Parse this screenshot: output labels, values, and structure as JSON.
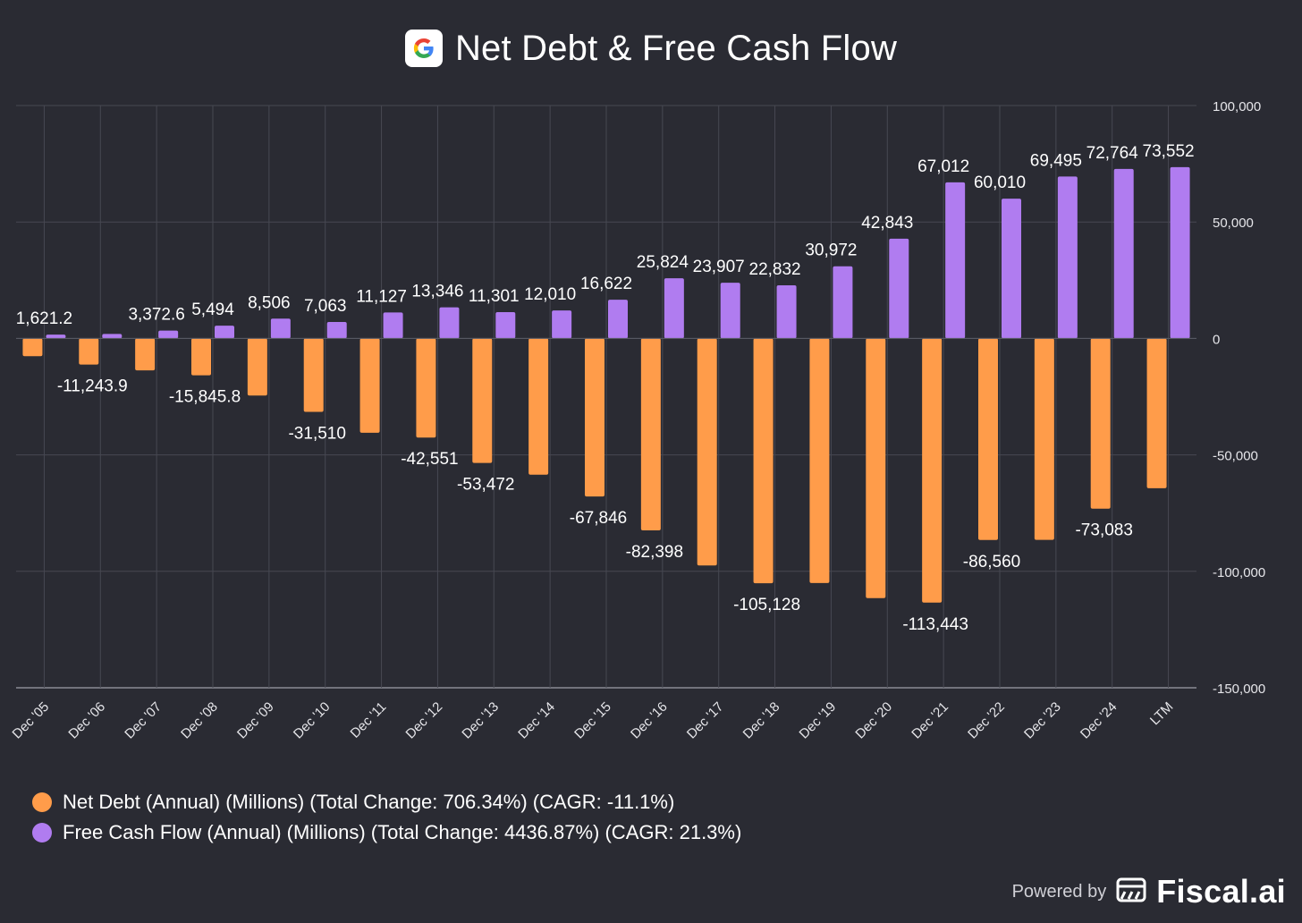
{
  "header": {
    "title": "Net Debt & Free Cash Flow",
    "logo_icon": "google-g-icon"
  },
  "colors": {
    "background": "#2a2b33",
    "net_debt": "#ff9c4a",
    "free_cash_flow": "#b07cf0",
    "grid": "#4a4b55"
  },
  "chart_data": {
    "type": "bar",
    "title": "Net Debt & Free Cash Flow",
    "xlabel": "",
    "ylabel": "",
    "ylim": [
      -150000,
      100000
    ],
    "yticks": [
      100000,
      50000,
      0,
      -50000,
      -100000,
      -150000
    ],
    "ytick_labels": [
      "100,000",
      "50,000",
      "0",
      "-50,000",
      "-100,000",
      "-150,000"
    ],
    "grid": true,
    "y_axis_position": "right",
    "categories": [
      "Dec '05",
      "Dec '06",
      "Dec '07",
      "Dec '08",
      "Dec '09",
      "Dec '10",
      "Dec '11",
      "Dec '12",
      "Dec '13",
      "Dec '14",
      "Dec '15",
      "Dec '16",
      "Dec '17",
      "Dec '18",
      "Dec '19",
      "Dec '20",
      "Dec '21",
      "Dec '22",
      "Dec '23",
      "Dec '24",
      "LTM"
    ],
    "series": [
      {
        "name": "Net Debt (Annual) (Millions) (Total Change: 706.34%) (CAGR: -11.1%)",
        "color": "#ff9c4a",
        "values": [
          -7600,
          -11243.9,
          -13700,
          -15845.8,
          -24500,
          -31510,
          -40500,
          -42551,
          -53472,
          -58500,
          -67846,
          -82398,
          -97500,
          -105128,
          -105000,
          -111500,
          -113443,
          -86560,
          -86500,
          -73083,
          -64300
        ],
        "labels": [
          "",
          "-11,243.9",
          "",
          "-15,845.8",
          "",
          "-31,510",
          "",
          "-42,551",
          "-53,472",
          "",
          "-67,846",
          "-82,398",
          "",
          "-105,128",
          "",
          "",
          "-113,443",
          "-86,560",
          "",
          "-73,083",
          ""
        ]
      },
      {
        "name": "Free Cash Flow (Annual) (Millions) (Total Change: 4436.87%) (CAGR: 21.3%)",
        "color": "#b07cf0",
        "values": [
          1621.2,
          1950,
          3372.6,
          5494,
          8506,
          7063,
          11127,
          13346,
          11301,
          12010,
          16622,
          25824,
          23907,
          22832,
          30972,
          42843,
          67012,
          60010,
          69495,
          72764,
          73552
        ],
        "labels": [
          "1,621.2",
          "",
          "3,372.6",
          "5,494",
          "8,506",
          "7,063",
          "11,127",
          "13,346",
          "11,301",
          "12,010",
          "16,622",
          "25,824",
          "23,907",
          "22,832",
          "30,972",
          "42,843",
          "67,012",
          "60,010",
          "69,495",
          "72,764",
          "73,552"
        ]
      }
    ],
    "legend_position": "bottom-left"
  },
  "legend": [
    {
      "label": "Net Debt (Annual) (Millions) (Total Change: 706.34%) (CAGR: -11.1%)",
      "color": "#ff9c4a"
    },
    {
      "label": "Free Cash Flow (Annual) (Millions) (Total Change: 4436.87%) (CAGR: 21.3%)",
      "color": "#b07cf0"
    }
  ],
  "footer": {
    "powered_by": "Powered by",
    "brand": "Fiscal.ai",
    "brand_icon": "fiscal-logo-icon"
  }
}
